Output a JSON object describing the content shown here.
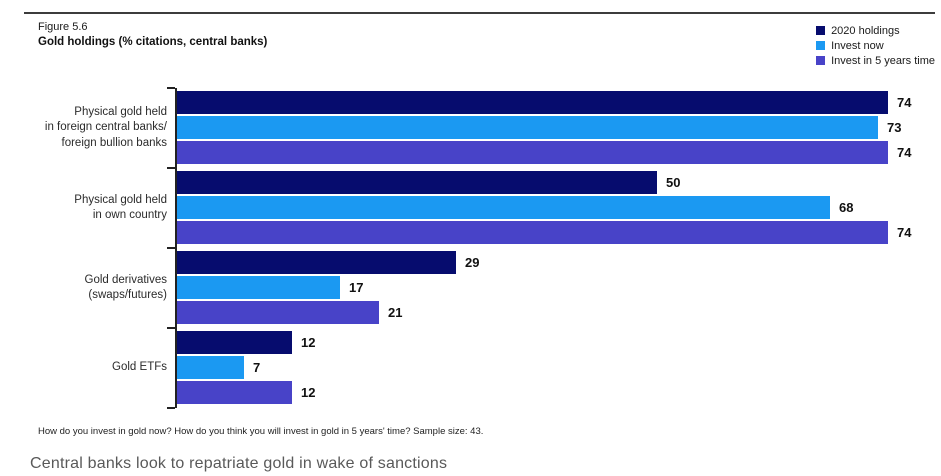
{
  "header": {
    "figure_number": "Figure 5.6",
    "title": "Gold holdings (% citations, central banks)"
  },
  "chart_data": {
    "type": "bar",
    "orientation": "horizontal",
    "title": "Gold holdings (% citations, central banks)",
    "categories": [
      "Physical gold held\nin foreign central banks/\nforeign bullion banks",
      "Physical gold held\nin own country",
      "Gold derivatives\n(swaps/futures)",
      "Gold ETFs"
    ],
    "series": [
      {
        "name": "2020 holdings",
        "color": "#060C6E",
        "values": [
          74,
          50,
          29,
          12
        ]
      },
      {
        "name": "Invest now",
        "color": "#1B99F2",
        "values": [
          73,
          68,
          17,
          7
        ]
      },
      {
        "name": "Invest in 5 years time",
        "color": "#4843C8",
        "values": [
          74,
          74,
          21,
          12
        ]
      }
    ],
    "xlim": [
      0,
      74
    ],
    "grid": false,
    "value_labels": true,
    "legend_position": "top-right",
    "axis_color": "#222222"
  },
  "footnote": "How do you invest in gold now? How do you think you will invest in gold in 5 years' time? Sample size: 43.",
  "caption": "Central banks look to repatriate gold in wake of sanctions"
}
